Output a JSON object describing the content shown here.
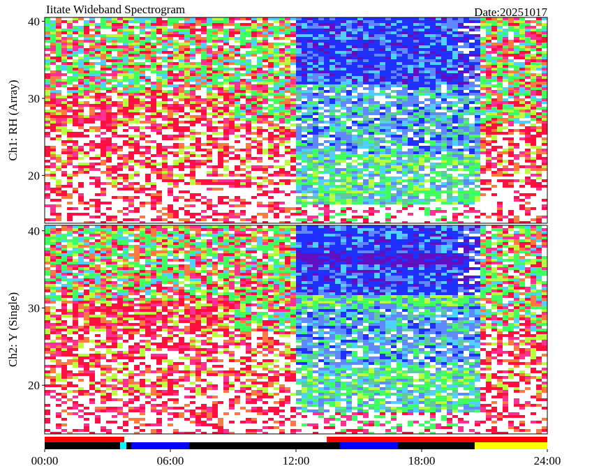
{
  "chart_data": [
    {
      "type": "spectrogram",
      "title": "Iitate Wideband Spectrogram",
      "subtitle": "Date:20251017",
      "ylabel": "Ch1: RH (Array)",
      "xlim": [
        0,
        24
      ],
      "ylim": [
        13.8,
        40.5
      ],
      "yticks": [
        20,
        30,
        40
      ]
    },
    {
      "type": "spectrogram",
      "ylabel": "Ch2: Y (Single)",
      "xlim": [
        0,
        24
      ],
      "ylim": [
        13.7,
        40.7
      ],
      "yticks": [
        20,
        30,
        40
      ]
    },
    {
      "type": "timeline",
      "xlim": [
        0,
        24
      ],
      "xticks": [
        {
          "value": 0,
          "label": "00:00"
        },
        {
          "value": 6,
          "label": "06:00"
        },
        {
          "value": 12,
          "label": "12:00"
        },
        {
          "value": 18,
          "label": "18:00"
        },
        {
          "value": 24,
          "label": "24:00"
        }
      ],
      "rows": [
        {
          "segments": [
            {
              "start": 0,
              "end": 3.8,
              "color": "#ff0000"
            },
            {
              "start": 13.47,
              "end": 24,
              "color": "#ff0000"
            }
          ]
        },
        {
          "segments": [
            {
              "start": 0,
              "end": 24,
              "color": "#000000"
            },
            {
              "start": 3.6,
              "end": 3.9,
              "color": "#00ffff"
            },
            {
              "start": 4.13,
              "end": 6.9,
              "color": "#0000ff"
            },
            {
              "start": 14.1,
              "end": 16.87,
              "color": "#0000ff"
            },
            {
              "start": 20.53,
              "end": 24,
              "color": "#ffff00"
            }
          ]
        }
      ]
    }
  ]
}
